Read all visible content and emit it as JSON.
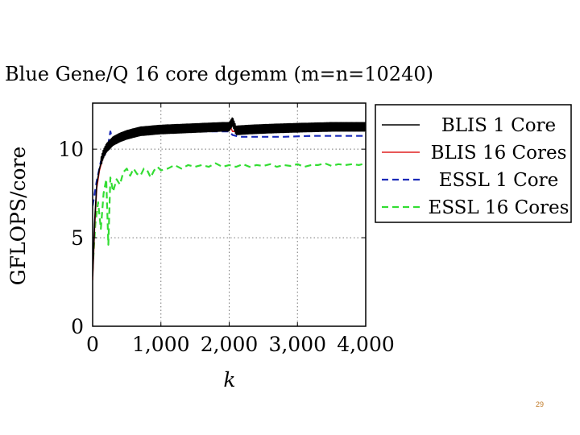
{
  "slide": {
    "page_number": "29"
  },
  "chart_data": {
    "type": "line",
    "title": "Blue Gene/Q 16 core dgemm (m=n=10240)",
    "xlabel": "k",
    "ylabel": "GFLOPS/core",
    "xlim": [
      0,
      4000
    ],
    "ylim": [
      0,
      12.6
    ],
    "x_ticks": [
      0,
      1000,
      2000,
      3000,
      4000
    ],
    "x_tick_labels": [
      "0",
      "1,000",
      "2,000",
      "3,000",
      "4,000"
    ],
    "y_ticks": [
      0,
      5,
      10
    ],
    "y_tick_labels": [
      "0",
      "5",
      "10"
    ],
    "grid": true,
    "legend_position": "right",
    "series": [
      {
        "name": "BLIS 1 Core",
        "color": "#000000",
        "style": "solid",
        "x": [
          0,
          30,
          60,
          100,
          150,
          200,
          300,
          400,
          500,
          700,
          1000,
          1300,
          1600,
          1900,
          2000,
          2050,
          2100,
          2300,
          2600,
          3000,
          3500,
          4000
        ],
        "y": [
          2.8,
          6.0,
          8.0,
          8.9,
          9.6,
          10.0,
          10.4,
          10.6,
          10.75,
          10.95,
          11.05,
          11.1,
          11.15,
          11.2,
          11.2,
          11.5,
          11.0,
          11.05,
          11.1,
          11.15,
          11.2,
          11.2
        ],
        "jitter": 0.3
      },
      {
        "name": "BLIS 16 Cores",
        "color": "#e02020",
        "style": "solid",
        "x": [
          0,
          30,
          60,
          100,
          150,
          200,
          300,
          400,
          500,
          700,
          1000,
          1300,
          1600,
          1900,
          2000,
          2050,
          2100,
          2300,
          2600,
          3000,
          3500,
          4000
        ],
        "y": [
          2.6,
          5.6,
          7.8,
          8.8,
          9.5,
          9.9,
          10.3,
          10.5,
          10.65,
          10.85,
          11.0,
          11.1,
          11.3,
          11.4,
          11.4,
          11.0,
          11.0,
          11.05,
          11.1,
          11.15,
          11.2,
          11.2
        ],
        "jitter": 0
      },
      {
        "name": "ESSL 1 Core",
        "color": "#1a2ab8",
        "style": "dashed",
        "x": [
          0,
          60,
          120,
          170,
          230,
          260,
          300,
          400,
          500,
          700,
          1000,
          1300,
          1600,
          1900,
          2000,
          2050,
          2150,
          2400,
          2800,
          3200,
          3600,
          4000
        ],
        "y": [
          6.8,
          8.2,
          9.3,
          9.6,
          10.3,
          11.0,
          10.4,
          10.7,
          10.85,
          10.9,
          10.95,
          11.0,
          11.0,
          11.0,
          11.0,
          10.8,
          10.7,
          10.7,
          10.7,
          10.75,
          10.75,
          10.75
        ],
        "jitter": 0
      },
      {
        "name": "ESSL 16 Cores",
        "color": "#33dd33",
        "style": "dashed",
        "x": [
          0,
          40,
          80,
          120,
          160,
          200,
          230,
          260,
          300,
          350,
          400,
          450,
          500,
          550,
          600,
          650,
          700,
          750,
          800,
          850,
          900,
          950,
          1000,
          1100,
          1200,
          1300,
          1400,
          1500,
          1600,
          1700,
          1800,
          1900,
          2000,
          2100,
          2200,
          2300,
          2400,
          2500,
          2600,
          2700,
          2800,
          2900,
          3000,
          3100,
          3200,
          3300,
          3400,
          3500,
          3600,
          3700,
          3800,
          3900,
          4000
        ],
        "y": [
          3.2,
          5.8,
          7.0,
          5.5,
          7.5,
          8.3,
          4.6,
          8.4,
          7.6,
          8.3,
          8.0,
          8.7,
          8.9,
          8.5,
          8.9,
          8.6,
          8.5,
          8.9,
          8.8,
          8.4,
          8.8,
          9.0,
          8.8,
          8.9,
          9.1,
          8.9,
          9.1,
          9.0,
          9.1,
          9.0,
          9.2,
          9.0,
          9.1,
          9.0,
          9.15,
          9.0,
          9.1,
          9.05,
          9.15,
          9.0,
          9.1,
          9.05,
          9.15,
          9.0,
          9.1,
          9.1,
          9.2,
          9.05,
          9.15,
          9.1,
          9.15,
          9.1,
          9.2
        ],
        "jitter": 0
      }
    ]
  }
}
